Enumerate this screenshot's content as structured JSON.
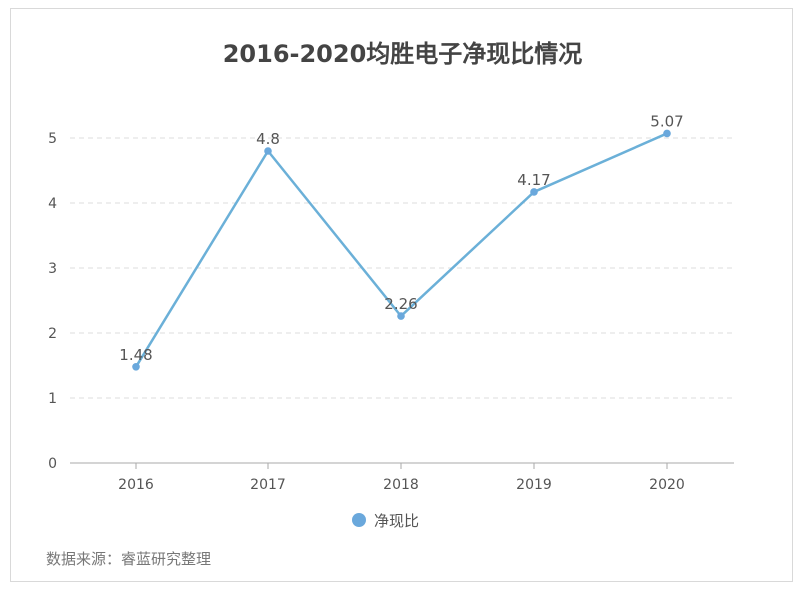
{
  "chart_data": {
    "type": "line",
    "title": "2016-2020均胜电子净现比情况",
    "categories": [
      "2016",
      "2017",
      "2018",
      "2019",
      "2020"
    ],
    "series": [
      {
        "name": "净现比",
        "values": [
          1.48,
          4.8,
          2.26,
          4.17,
          5.07
        ],
        "data_labels": [
          "1.48",
          "4.8",
          "2.26",
          "4.17",
          "5.07"
        ]
      }
    ],
    "ylim": [
      0,
      5
    ],
    "yticks": [
      "0",
      "1",
      "2",
      "3",
      "4",
      "5"
    ],
    "grid": true,
    "legend_position": "bottom",
    "colors": {
      "line": "#6bb0d8",
      "marker": "#6aa8dc",
      "legend": "#6aa8dc"
    }
  },
  "source_note": "数据来源：睿蓝研究整理"
}
